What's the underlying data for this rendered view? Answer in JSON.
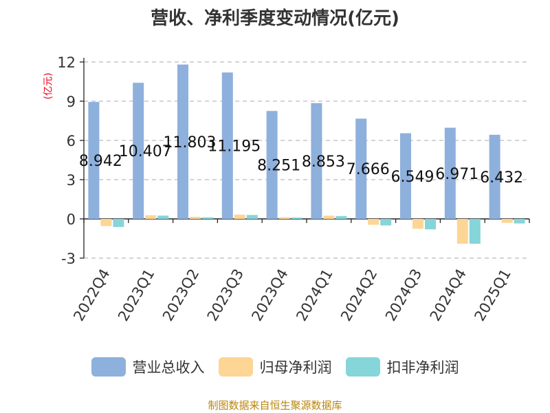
{
  "title": "营收、净利季度变动情况(亿元)",
  "unit_label": "(亿元)",
  "source": "制图数据来自恒生聚源数据库",
  "colors": {
    "revenue": "#8eb0dc",
    "net_profit": "#fdd595",
    "deducted_profit": "#85d5d9",
    "grid": "#bbbbbb",
    "axis": "#222222",
    "text": "#333333"
  },
  "chart_data": {
    "type": "bar",
    "title": "营收、净利季度变动情况(亿元)",
    "ylabel": "(亿元)",
    "xlabel": "",
    "ylim": [
      -3,
      12
    ],
    "yticks": [
      -3,
      0,
      3,
      6,
      9,
      12
    ],
    "grid": true,
    "legend_position": "bottom",
    "categories": [
      "2022Q4",
      "2023Q1",
      "2023Q2",
      "2023Q3",
      "2023Q4",
      "2024Q1",
      "2024Q2",
      "2024Q3",
      "2024Q4",
      "2025Q1"
    ],
    "series": [
      {
        "name": "营业总收入",
        "color": "#8eb0dc",
        "values": [
          8.942,
          10.407,
          11.803,
          11.195,
          8.251,
          8.853,
          7.666,
          6.549,
          6.971,
          6.432
        ],
        "labels": [
          "8.942",
          "10.407",
          "11.803",
          "11.195",
          "8.251",
          "8.853",
          "7.666",
          "6.549",
          "6.971",
          "6.432"
        ]
      },
      {
        "name": "归母净利润",
        "color": "#fdd595",
        "values": [
          -0.55,
          0.28,
          0.16,
          0.33,
          0.12,
          0.25,
          -0.45,
          -0.75,
          -1.9,
          -0.3
        ]
      },
      {
        "name": "扣非净利润",
        "color": "#85d5d9",
        "values": [
          -0.62,
          0.25,
          0.12,
          0.3,
          0.1,
          0.22,
          -0.5,
          -0.8,
          -1.9,
          -0.35
        ]
      }
    ]
  }
}
